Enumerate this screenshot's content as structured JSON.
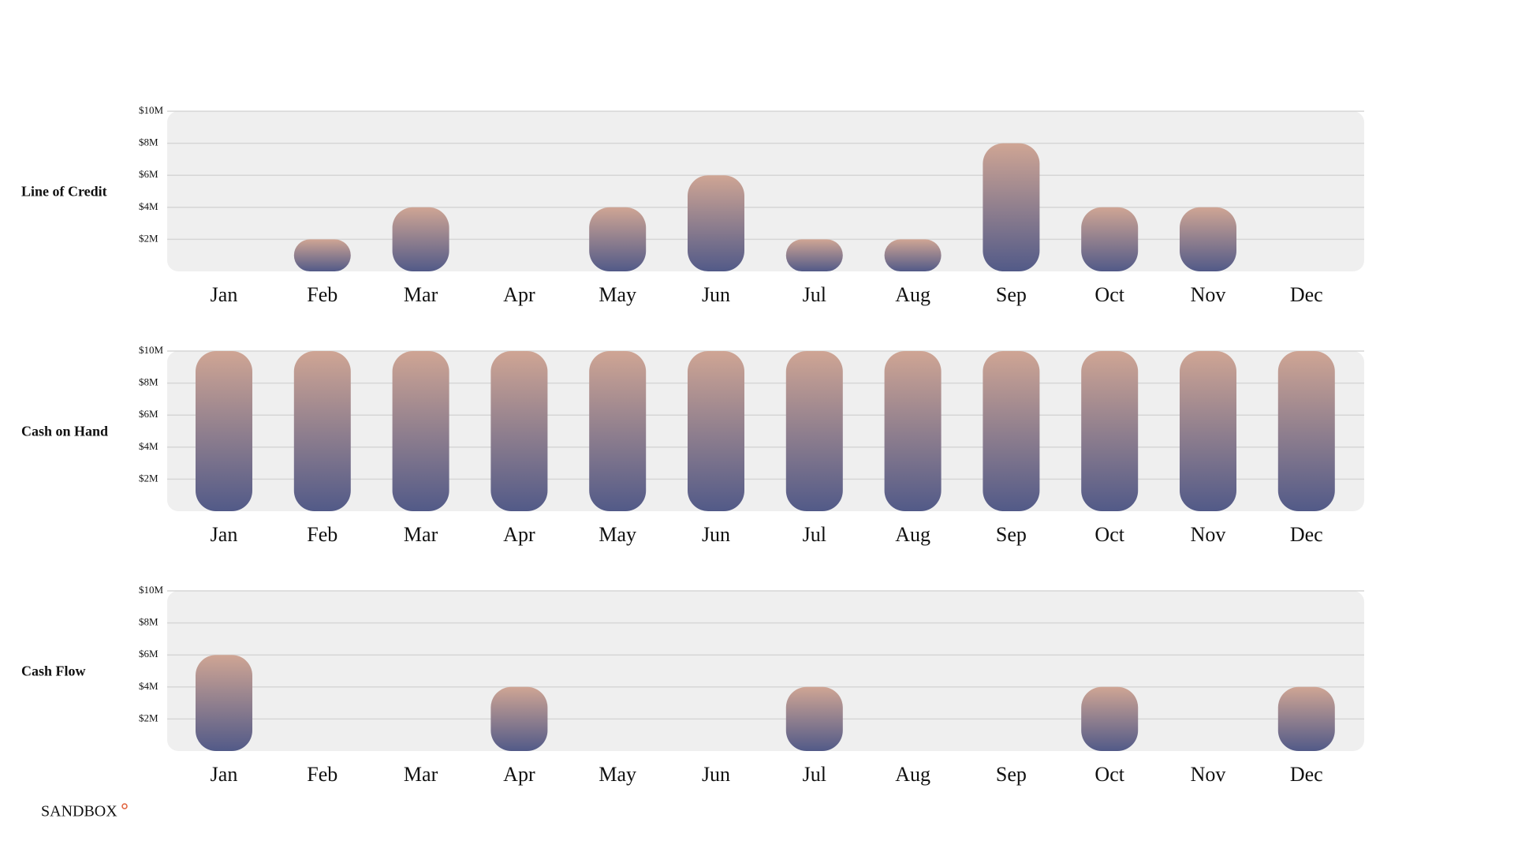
{
  "chart_data": [
    {
      "type": "bar",
      "title": "Line of Credit",
      "categories": [
        "Jan",
        "Feb",
        "Mar",
        "Apr",
        "May",
        "Jun",
        "Jul",
        "Aug",
        "Sep",
        "Oct",
        "Nov",
        "Dec"
      ],
      "values": [
        0,
        2,
        4,
        0,
        4,
        6,
        2,
        2,
        8,
        4,
        4,
        0
      ],
      "ylim": [
        0,
        10
      ],
      "yticks": [
        {
          "value": 2,
          "label": "$2M"
        },
        {
          "value": 4,
          "label": "$4M"
        },
        {
          "value": 6,
          "label": "$6M"
        },
        {
          "value": 8,
          "label": "$8M"
        },
        {
          "value": 10,
          "label": "$10M"
        }
      ],
      "grid": true,
      "colors": [
        "#cfa594",
        "#525a88"
      ]
    },
    {
      "type": "bar",
      "title": "Cash on Hand",
      "categories": [
        "Jan",
        "Feb",
        "Mar",
        "Apr",
        "May",
        "Jun",
        "Jul",
        "Aug",
        "Sep",
        "Oct",
        "Nov",
        "Dec"
      ],
      "values": [
        10,
        10,
        10,
        10,
        10,
        10,
        10,
        10,
        10,
        10,
        10,
        10
      ],
      "ylim": [
        0,
        10
      ],
      "yticks": [
        {
          "value": 2,
          "label": "$2M"
        },
        {
          "value": 4,
          "label": "$4M"
        },
        {
          "value": 6,
          "label": "$6M"
        },
        {
          "value": 8,
          "label": "$8M"
        },
        {
          "value": 10,
          "label": "$10M"
        }
      ],
      "grid": true,
      "colors": [
        "#cfa594",
        "#525a88"
      ]
    },
    {
      "type": "bar",
      "title": "Cash Flow",
      "categories": [
        "Jan",
        "Feb",
        "Mar",
        "Apr",
        "May",
        "Jun",
        "Jul",
        "Aug",
        "Sep",
        "Oct",
        "Nov",
        "Dec"
      ],
      "values": [
        6,
        0,
        0,
        4,
        0,
        0,
        4,
        0,
        0,
        4,
        0,
        4
      ],
      "ylim": [
        0,
        10
      ],
      "yticks": [
        {
          "value": 2,
          "label": "$2M"
        },
        {
          "value": 4,
          "label": "$4M"
        },
        {
          "value": 6,
          "label": "$6M"
        },
        {
          "value": 8,
          "label": "$8M"
        },
        {
          "value": 10,
          "label": "$10M"
        }
      ],
      "grid": true,
      "colors": [
        "#cfa594",
        "#525a88"
      ]
    }
  ],
  "footer": {
    "brand": "SANDBOX"
  }
}
